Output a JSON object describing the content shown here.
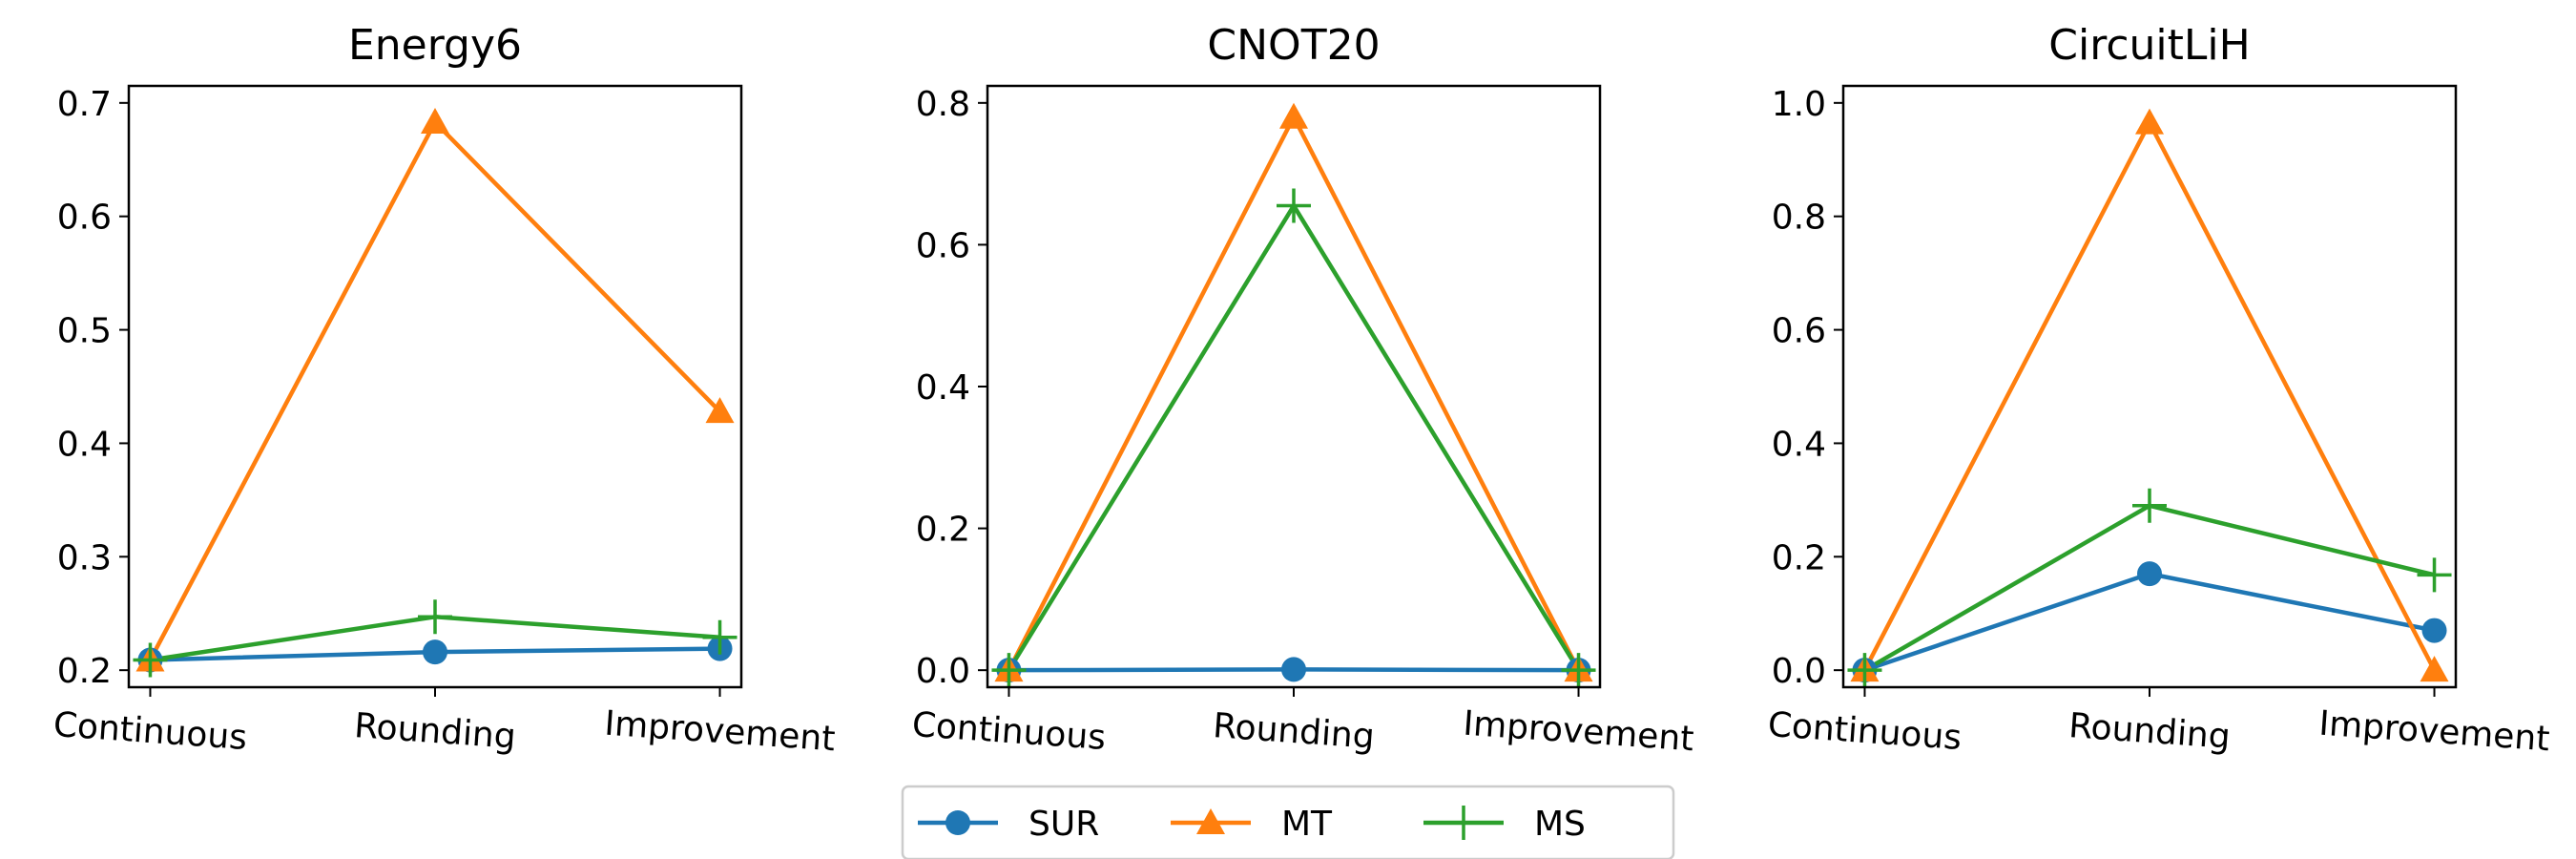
{
  "chart_data": [
    {
      "type": "line",
      "title": "Energy6",
      "categories": [
        "Continuous",
        "Rounding",
        "Improvement"
      ],
      "ylim": [
        0.2,
        0.7
      ],
      "yticks": [
        "0.2",
        "0.3",
        "0.4",
        "0.5",
        "0.6",
        "0.7"
      ],
      "series": [
        {
          "name": "SUR",
          "values": [
            0.209,
            0.216,
            0.219
          ]
        },
        {
          "name": "MT",
          "values": [
            0.209,
            0.683,
            0.428
          ]
        },
        {
          "name": "MS",
          "values": [
            0.209,
            0.247,
            0.229
          ]
        }
      ]
    },
    {
      "type": "line",
      "title": "CNOT20",
      "categories": [
        "Continuous",
        "Rounding",
        "Improvement"
      ],
      "ylim": [
        0.0,
        0.8
      ],
      "yticks": [
        "0.0",
        "0.2",
        "0.4",
        "0.6",
        "0.8"
      ],
      "series": [
        {
          "name": "SUR",
          "values": [
            0.0,
            0.001,
            0.0
          ]
        },
        {
          "name": "MT",
          "values": [
            0.0,
            0.78,
            0.0
          ]
        },
        {
          "name": "MS",
          "values": [
            0.0,
            0.655,
            0.0
          ]
        }
      ]
    },
    {
      "type": "line",
      "title": "CircuitLiH",
      "categories": [
        "Continuous",
        "Rounding",
        "Improvement"
      ],
      "ylim": [
        0.0,
        1.0
      ],
      "yticks": [
        "0.0",
        "0.2",
        "0.4",
        "0.6",
        "0.8",
        "1.0"
      ],
      "series": [
        {
          "name": "SUR",
          "values": [
            0.0,
            0.17,
            0.07
          ]
        },
        {
          "name": "MT",
          "values": [
            0.0,
            0.965,
            0.0
          ]
        },
        {
          "name": "MS",
          "values": [
            0.0,
            0.29,
            0.168
          ]
        }
      ]
    }
  ],
  "legend": {
    "placement": "bottom-center",
    "entries": [
      {
        "name": "SUR",
        "color": "#1f77b4",
        "marker": "circle"
      },
      {
        "name": "MT",
        "color": "#ff7f0e",
        "marker": "triangle"
      },
      {
        "name": "MS",
        "color": "#2ca02c",
        "marker": "plus"
      }
    ]
  }
}
